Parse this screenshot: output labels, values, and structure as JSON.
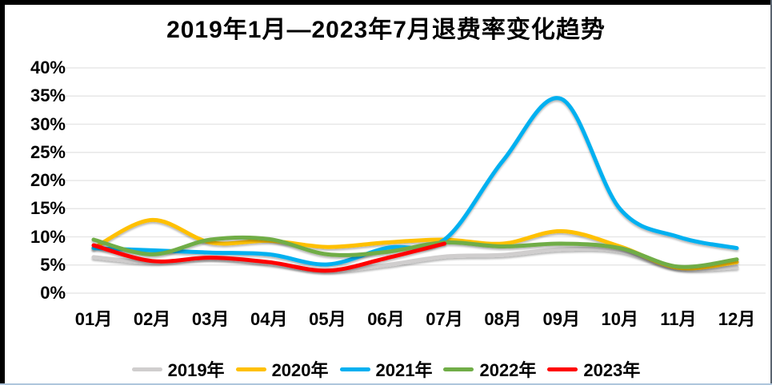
{
  "title": "2019年1月—2023年7月退费率变化趋势",
  "y_axis": {
    "tick_labels": [
      "40%",
      "35%",
      "30%",
      "25%",
      "20%",
      "15%",
      "10%",
      "5%",
      "0%"
    ]
  },
  "x_axis": {
    "tick_labels": [
      "01月",
      "02月",
      "03月",
      "04月",
      "05月",
      "06月",
      "07月",
      "08月",
      "09月",
      "10月",
      "11月",
      "12月"
    ]
  },
  "colors": {
    "grid": "#e7e7e7",
    "series_2019": "#d0cece",
    "series_2020": "#ffc000",
    "series_2021": "#00b0f0",
    "series_2022": "#70ad47",
    "series_2023": "#ff0000"
  },
  "chart_data": {
    "type": "line",
    "title": "2019年1月—2023年7月退费率变化趋势",
    "categories": [
      "01月",
      "02月",
      "03月",
      "04月",
      "05月",
      "06月",
      "07月",
      "08月",
      "09月",
      "10月",
      "11月",
      "12月"
    ],
    "series": [
      {
        "name": "2019年",
        "color": "#d0cece",
        "values": [
          6.4,
          5.5,
          6.2,
          5.3,
          4.0,
          5.0,
          6.5,
          6.8,
          7.8,
          7.5,
          4.4,
          4.6
        ]
      },
      {
        "name": "2020年",
        "color": "#ffc000",
        "values": [
          8.0,
          13.0,
          9.0,
          9.3,
          8.2,
          9.0,
          9.5,
          8.8,
          11.0,
          8.3,
          4.5,
          5.5
        ]
      },
      {
        "name": "2021年",
        "color": "#00b0f0",
        "values": [
          8.0,
          7.6,
          7.2,
          6.9,
          5.1,
          8.0,
          9.5,
          23.5,
          34.5,
          15.0,
          10.0,
          8.0
        ]
      },
      {
        "name": "2022年",
        "color": "#70ad47",
        "values": [
          9.5,
          6.9,
          9.5,
          9.6,
          6.9,
          7.3,
          9.0,
          8.3,
          8.8,
          8.0,
          4.7,
          6.0
        ]
      },
      {
        "name": "2023年",
        "color": "#ff0000",
        "values": [
          8.5,
          5.7,
          6.3,
          5.5,
          4.0,
          6.2,
          8.8,
          null,
          null,
          null,
          null,
          null
        ]
      }
    ],
    "ylabel": "",
    "xlabel": "",
    "ylim": [
      0,
      40
    ],
    "y_tick_step": 5,
    "y_tick_format": "percent",
    "grid": "horizontal",
    "legend_position": "bottom",
    "smooth": true
  }
}
